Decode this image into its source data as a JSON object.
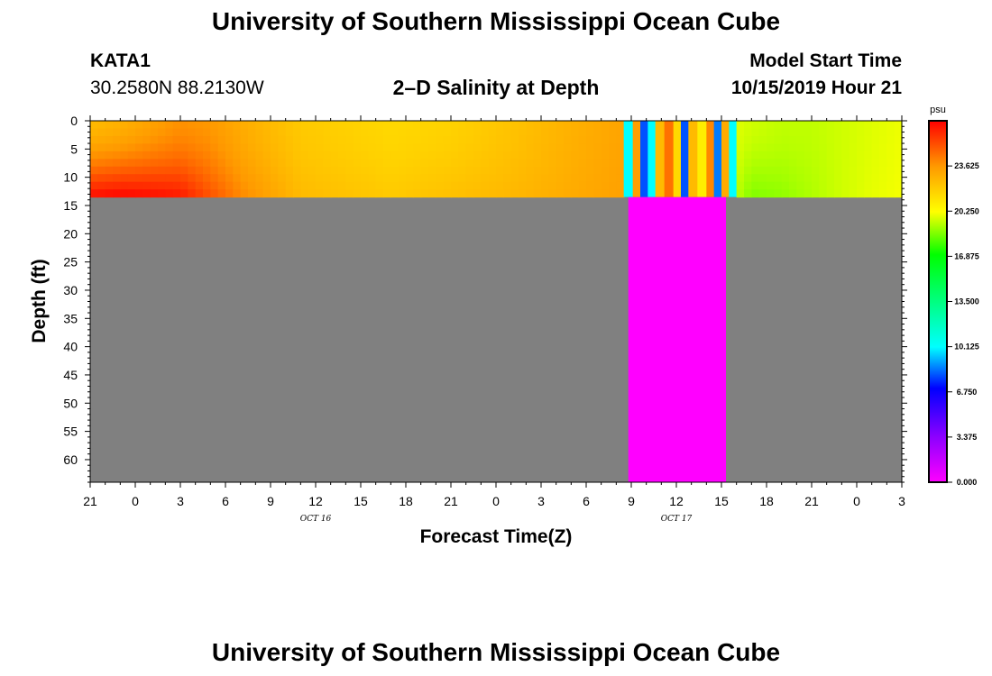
{
  "header": {
    "title": "University of Southern Mississippi Ocean Cube",
    "station": "KATA1",
    "coords": "30.2580N 88.2130W",
    "subtitle": "2–D Salinity at Depth",
    "model_start_label": "Model Start Time",
    "model_start_value": "10/15/2019 Hour 21"
  },
  "footer": {
    "title": "University of Southern Mississippi Ocean Cube"
  },
  "chart_data": {
    "type": "heatmap",
    "title": "2–D Salinity at Depth",
    "xlabel": "Forecast Time(Z)",
    "ylabel": "Depth (ft)",
    "x_tick_labels": [
      "21",
      "0",
      "3",
      "6",
      "9",
      "12",
      "15",
      "18",
      "21",
      "0",
      "3",
      "6",
      "9",
      "12",
      "15",
      "18",
      "21",
      "0",
      "3"
    ],
    "date_labels": [
      {
        "tick_index": 5,
        "text": "OCT 16"
      },
      {
        "tick_index": 13,
        "text": "OCT 17"
      }
    ],
    "y_ticks": [
      0,
      5,
      10,
      15,
      20,
      25,
      30,
      35,
      40,
      45,
      50,
      55,
      60
    ],
    "y_range": [
      0,
      64
    ],
    "x_range_hours": [
      0,
      54
    ],
    "data_depth_limit_ft": 13.5,
    "colorbar": {
      "unit": "psu",
      "range": [
        0,
        27
      ],
      "tick_labels": [
        "0.000",
        "3.375",
        "6.750",
        "10.125",
        "13.500",
        "16.875",
        "20.250",
        "23.625"
      ],
      "tick_values": [
        0,
        3.375,
        6.75,
        10.125,
        13.5,
        16.875,
        20.25,
        23.625
      ],
      "stops": [
        {
          "v": 0.0,
          "color": "#ff00ff"
        },
        {
          "v": 3.5,
          "color": "#8800ff"
        },
        {
          "v": 7.0,
          "color": "#0000ff"
        },
        {
          "v": 10.1,
          "color": "#00ffff"
        },
        {
          "v": 13.5,
          "color": "#00ff80"
        },
        {
          "v": 17.0,
          "color": "#00ff00"
        },
        {
          "v": 20.2,
          "color": "#ffff00"
        },
        {
          "v": 23.6,
          "color": "#ff9900"
        },
        {
          "v": 27.0,
          "color": "#ff0000"
        }
      ]
    },
    "no_data_color": "#808080",
    "missing_color": "#ff00ff",
    "salinity_profile": {
      "hours": [
        0,
        2,
        4,
        6,
        8,
        10,
        14,
        20,
        24,
        28,
        32,
        35
      ],
      "surface": [
        22.5,
        22.8,
        23.3,
        23.8,
        23.6,
        23.0,
        22.0,
        21.5,
        21.7,
        22.2,
        22.8,
        23.2
      ],
      "bottom": [
        26.8,
        27.0,
        26.8,
        26.5,
        25.2,
        24.0,
        22.5,
        22.0,
        22.3,
        22.6,
        23.0,
        23.3
      ]
    },
    "stripe_segment": {
      "hours_start": 35.5,
      "hours_end": 43.0,
      "stripes": [
        {
          "h0": 35.5,
          "h1": 36.1,
          "v": 10.1
        },
        {
          "h0": 36.1,
          "h1": 36.6,
          "v": 23.4
        },
        {
          "h0": 36.6,
          "h1": 37.1,
          "v": 8.0
        },
        {
          "h0": 37.1,
          "h1": 37.6,
          "v": 10.1
        },
        {
          "h0": 37.6,
          "h1": 38.2,
          "v": 22.5
        },
        {
          "h0": 38.2,
          "h1": 38.8,
          "v": 24.5
        },
        {
          "h0": 38.8,
          "h1": 39.3,
          "v": 21.5
        },
        {
          "h0": 39.3,
          "h1": 39.8,
          "v": 8.0
        },
        {
          "h0": 39.8,
          "h1": 40.4,
          "v": 22.5
        },
        {
          "h0": 40.4,
          "h1": 41.0,
          "v": 20.8
        },
        {
          "h0": 41.0,
          "h1": 41.5,
          "v": 24.0
        },
        {
          "h0": 41.5,
          "h1": 42.0,
          "v": 8.5
        },
        {
          "h0": 42.0,
          "h1": 42.5,
          "v": 23.0
        },
        {
          "h0": 42.5,
          "h1": 43.0,
          "v": 10.1
        }
      ]
    },
    "magenta_column_hours": [
      35.8,
      42.3
    ],
    "late_profile": {
      "hours": [
        43.0,
        44,
        46,
        48,
        50,
        52,
        54
      ],
      "surface": [
        19.8,
        19.6,
        19.4,
        19.4,
        19.6,
        19.8,
        20.0
      ],
      "bottom": [
        19.4,
        18.6,
        18.8,
        19.2,
        19.6,
        19.9,
        20.1
      ]
    }
  }
}
